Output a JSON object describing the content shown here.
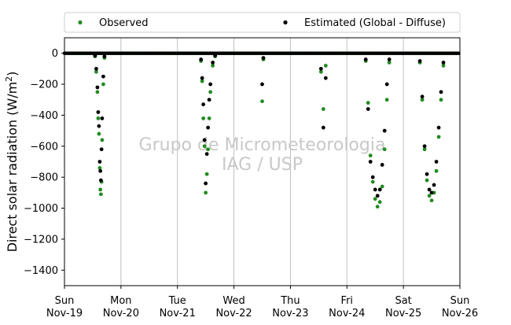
{
  "chart_data": {
    "type": "scatter",
    "title": "",
    "ylabel_prefix": "Direct solar radiation (W/m",
    "ylabel_sup": "2",
    "ylabel_suffix": ")",
    "ylim": [
      -1500,
      100
    ],
    "yticks": [
      0,
      -200,
      -400,
      -600,
      -800,
      -1000,
      -1200,
      -1400
    ],
    "xlim": [
      "2017-11-19",
      "2017-11-26"
    ],
    "x_unit": "days",
    "xticks": [
      {
        "day": "Sun",
        "date": "Nov-19"
      },
      {
        "day": "Mon",
        "date": "Nov-20"
      },
      {
        "day": "Tue",
        "date": "Nov-21"
      },
      {
        "day": "Wed",
        "date": "Nov-22"
      },
      {
        "day": "Thu",
        "date": "Nov-23"
      },
      {
        "day": "Fri",
        "date": "Nov-24"
      },
      {
        "day": "Sat",
        "date": "Nov-25"
      },
      {
        "day": "Sun",
        "date": "Nov-26"
      }
    ],
    "grid": "vertical",
    "zero_line": true,
    "legend_position": "top",
    "watermark": [
      "Grupo de Micrometeorologia",
      "IAG / USP"
    ],
    "colors": {
      "observed": "#228b22",
      "estimated": "#000000",
      "grid": "#c0c0c0",
      "watermark": "#c8c8c8"
    },
    "series": [
      {
        "name": "Observed",
        "color": "#228b22",
        "points": [
          [
            "2017-11-19T13:00",
            -20
          ],
          [
            "2017-11-19T13:30",
            -120
          ],
          [
            "2017-11-19T14:00",
            -250
          ],
          [
            "2017-11-19T14:20",
            -420
          ],
          [
            "2017-11-19T14:40",
            -520
          ],
          [
            "2017-11-19T15:00",
            -740
          ],
          [
            "2017-11-19T15:15",
            -880
          ],
          [
            "2017-11-19T15:30",
            -910
          ],
          [
            "2017-11-19T15:45",
            -830
          ],
          [
            "2017-11-19T16:00",
            -560
          ],
          [
            "2017-11-19T16:30",
            -200
          ],
          [
            "2017-11-19T17:00",
            -30
          ],
          [
            "2017-11-21T10:00",
            -50
          ],
          [
            "2017-11-21T10:30",
            -180
          ],
          [
            "2017-11-21T11:00",
            -420
          ],
          [
            "2017-11-21T11:30",
            -600
          ],
          [
            "2017-11-21T12:00",
            -900
          ],
          [
            "2017-11-21T12:30",
            -780
          ],
          [
            "2017-11-21T13:00",
            -620
          ],
          [
            "2017-11-21T13:30",
            -420
          ],
          [
            "2017-11-21T14:00",
            -250
          ],
          [
            "2017-11-21T15:00",
            -80
          ],
          [
            "2017-11-21T16:00",
            -20
          ],
          [
            "2017-11-22T12:00",
            -310
          ],
          [
            "2017-11-22T12:30",
            -40
          ],
          [
            "2017-11-23T13:00",
            -120
          ],
          [
            "2017-11-23T14:00",
            -360
          ],
          [
            "2017-11-23T15:00",
            -80
          ],
          [
            "2017-11-24T08:00",
            -50
          ],
          [
            "2017-11-24T09:00",
            -320
          ],
          [
            "2017-11-24T10:00",
            -660
          ],
          [
            "2017-11-24T11:00",
            -830
          ],
          [
            "2017-11-24T12:00",
            -940
          ],
          [
            "2017-11-24T13:00",
            -990
          ],
          [
            "2017-11-24T14:00",
            -960
          ],
          [
            "2017-11-24T15:00",
            -860
          ],
          [
            "2017-11-24T16:00",
            -620
          ],
          [
            "2017-11-24T17:00",
            -300
          ],
          [
            "2017-11-24T18:00",
            -60
          ],
          [
            "2017-11-25T07:00",
            -60
          ],
          [
            "2017-11-25T08:00",
            -300
          ],
          [
            "2017-11-25T09:00",
            -620
          ],
          [
            "2017-11-25T10:00",
            -820
          ],
          [
            "2017-11-25T11:00",
            -920
          ],
          [
            "2017-11-25T12:00",
            -950
          ],
          [
            "2017-11-25T13:00",
            -900
          ],
          [
            "2017-11-25T14:00",
            -760
          ],
          [
            "2017-11-25T15:00",
            -540
          ],
          [
            "2017-11-25T16:00",
            -300
          ],
          [
            "2017-11-25T17:00",
            -80
          ]
        ]
      },
      {
        "name": "Estimated (Global - Diffuse)",
        "color": "#000000",
        "points": [
          [
            "2017-11-19T13:00",
            -15
          ],
          [
            "2017-11-19T13:30",
            -100
          ],
          [
            "2017-11-19T14:00",
            -220
          ],
          [
            "2017-11-19T14:20",
            -380
          ],
          [
            "2017-11-19T14:40",
            -470
          ],
          [
            "2017-11-19T15:00",
            -700
          ],
          [
            "2017-11-19T15:15",
            -760
          ],
          [
            "2017-11-19T15:30",
            -820
          ],
          [
            "2017-11-19T15:45",
            -620
          ],
          [
            "2017-11-19T16:00",
            -420
          ],
          [
            "2017-11-19T16:30",
            -150
          ],
          [
            "2017-11-19T17:00",
            -20
          ],
          [
            "2017-11-21T10:00",
            -40
          ],
          [
            "2017-11-21T10:30",
            -160
          ],
          [
            "2017-11-21T11:00",
            -330
          ],
          [
            "2017-11-21T11:30",
            -560
          ],
          [
            "2017-11-21T12:00",
            -840
          ],
          [
            "2017-11-21T12:30",
            -650
          ],
          [
            "2017-11-21T13:00",
            -480
          ],
          [
            "2017-11-21T13:30",
            -300
          ],
          [
            "2017-11-21T14:00",
            -200
          ],
          [
            "2017-11-21T15:00",
            -60
          ],
          [
            "2017-11-21T16:00",
            -15
          ],
          [
            "2017-11-22T12:00",
            -200
          ],
          [
            "2017-11-22T12:30",
            -30
          ],
          [
            "2017-11-23T13:00",
            -100
          ],
          [
            "2017-11-23T14:00",
            -480
          ],
          [
            "2017-11-23T15:00",
            -160
          ],
          [
            "2017-11-24T08:00",
            -40
          ],
          [
            "2017-11-24T09:00",
            -360
          ],
          [
            "2017-11-24T10:00",
            -700
          ],
          [
            "2017-11-24T11:00",
            -800
          ],
          [
            "2017-11-24T12:00",
            -880
          ],
          [
            "2017-11-24T13:00",
            -920
          ],
          [
            "2017-11-24T14:00",
            -880
          ],
          [
            "2017-11-24T15:00",
            -720
          ],
          [
            "2017-11-24T16:00",
            -500
          ],
          [
            "2017-11-24T17:00",
            -200
          ],
          [
            "2017-11-24T18:00",
            -40
          ],
          [
            "2017-11-25T07:00",
            -50
          ],
          [
            "2017-11-25T08:00",
            -280
          ],
          [
            "2017-11-25T09:00",
            -600
          ],
          [
            "2017-11-25T10:00",
            -780
          ],
          [
            "2017-11-25T11:00",
            -880
          ],
          [
            "2017-11-25T12:00",
            -900
          ],
          [
            "2017-11-25T13:00",
            -850
          ],
          [
            "2017-11-25T14:00",
            -700
          ],
          [
            "2017-11-25T15:00",
            -480
          ],
          [
            "2017-11-25T16:00",
            -250
          ],
          [
            "2017-11-25T17:00",
            -60
          ]
        ]
      }
    ]
  }
}
